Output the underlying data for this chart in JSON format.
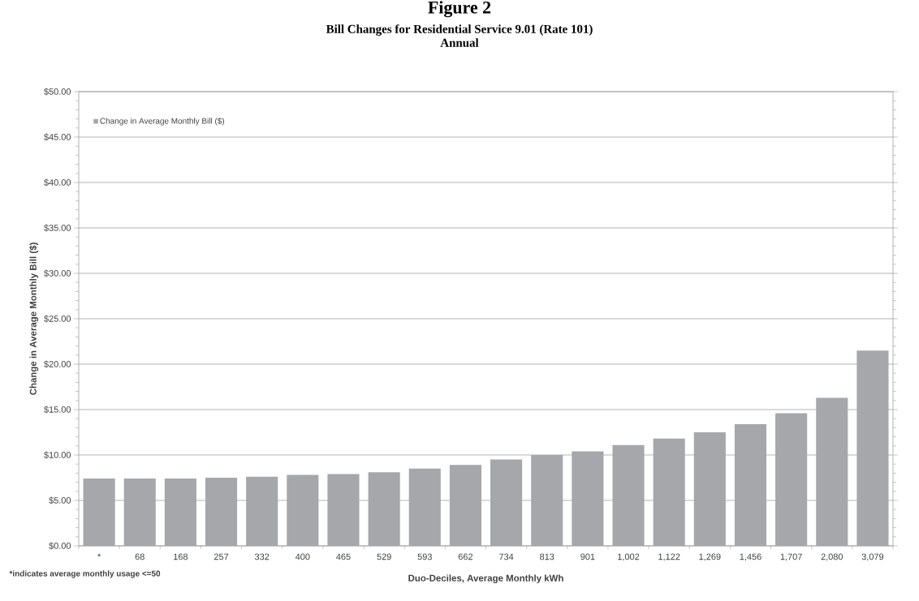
{
  "chart_data": {
    "type": "bar",
    "title": "Bill Changes for Residential Service 9.01 (Rate 101)",
    "subtitle": "Annual",
    "xlabel": "Duo-Deciles, Average Monthly kWh",
    "ylabel": "Change in Average Monthly Bill ($)",
    "annotations": [
      "Figure 2",
      "*indicates average monthly usage <=50"
    ],
    "categories": [
      "*",
      "68",
      "168",
      "257",
      "332",
      "400",
      "465",
      "529",
      "593",
      "662",
      "734",
      "813",
      "901",
      "1,002",
      "1,122",
      "1,269",
      "1,456",
      "1,707",
      "2,080",
      "3,079"
    ],
    "series": [
      {
        "name": "Change in Average Monthly Bill ($)",
        "color": "#a6a7ab",
        "values": [
          7.4,
          7.4,
          7.4,
          7.5,
          7.6,
          7.8,
          7.9,
          8.1,
          8.5,
          8.9,
          9.5,
          10.0,
          10.4,
          11.1,
          11.8,
          12.5,
          13.4,
          14.6,
          16.3,
          21.5
        ]
      }
    ],
    "ylim": [
      0,
      50
    ],
    "yticks": [
      {
        "value": 0,
        "label": "$0.00"
      },
      {
        "value": 5,
        "label": "$5.00"
      },
      {
        "value": 10,
        "label": "$10.00"
      },
      {
        "value": 15,
        "label": "$15.00"
      },
      {
        "value": 20,
        "label": "$20.00"
      },
      {
        "value": 25,
        "label": "$25.00"
      },
      {
        "value": 30,
        "label": "$30.00"
      },
      {
        "value": 35,
        "label": "$35.00"
      },
      {
        "value": 40,
        "label": "$40.00"
      },
      {
        "value": 45,
        "label": "$45.00"
      },
      {
        "value": 50,
        "label": "$50.00"
      }
    ],
    "grid": "y",
    "legend": "top left"
  }
}
